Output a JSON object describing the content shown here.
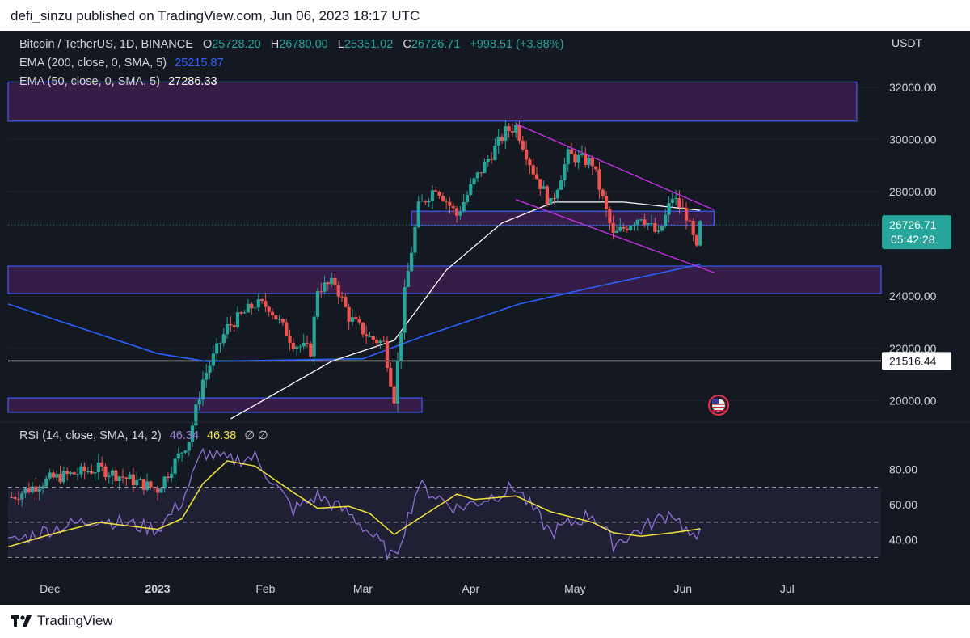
{
  "header": {
    "published": "defi_sinzu published on TradingView.com, Jun 06, 2023 18:17 UTC"
  },
  "legend": {
    "symbol": "Bitcoin / TetherUS, 1D, BINANCE",
    "o_label": "O",
    "o_value": "25728.20",
    "h_label": "H",
    "h_value": "26780.00",
    "l_label": "L",
    "l_value": "25351.02",
    "c_label": "C",
    "c_value": "26726.71",
    "change": "+998.51 (+3.88%)",
    "ema200_label": "EMA (200, close, 0, SMA, 5)",
    "ema200_value": "25215.87",
    "ema50_label": "EMA (50, close, 0, SMA, 5)",
    "ema50_value": "27286.33",
    "rsi_label": "RSI (14, close, SMA, 14, 2)",
    "rsi_value": "46.34",
    "rsi_ma_value": "46.38",
    "rsi_extra": "∅  ∅"
  },
  "price_axis": {
    "currency": "USDT",
    "ticks": [
      "32000.00",
      "30000.00",
      "28000.00",
      "24000.00",
      "22000.00",
      "20000.00"
    ],
    "last_price": "26726.71",
    "countdown": "05:42:28",
    "hline_label": "21516.44"
  },
  "rsi_axis": {
    "ticks": [
      "80.00",
      "60.00",
      "40.00"
    ]
  },
  "time_axis": {
    "ticks": [
      "Dec",
      "2023",
      "Feb",
      "Mar",
      "Apr",
      "May",
      "Jun",
      "Jul"
    ]
  },
  "footer": {
    "brand": "TradingView"
  },
  "colors": {
    "bg": "#141820",
    "up": "#26a69a",
    "down": "#ef5350",
    "ema200": "#2962ff",
    "ema50": "#ffffff",
    "zone_fill": "#3b1f4f",
    "zone_border": "#3d5afe",
    "channel": "#c030e0",
    "rsi": "#8f6fd8",
    "rsi_ma": "#f5e33b"
  },
  "chart_data": {
    "type": "candlestick",
    "symbol": "BTCUSDT",
    "interval": "1D",
    "ylim": [
      19300,
      32800
    ],
    "date_range": [
      "2022-11-19",
      "2023-07-28"
    ],
    "ohlc_summary": [
      {
        "date": "2022-11-20",
        "close": 16300
      },
      {
        "date": "2022-12-01",
        "close": 17000
      },
      {
        "date": "2022-12-15",
        "close": 17400
      },
      {
        "date": "2023-01-01",
        "close": 16600
      },
      {
        "date": "2023-01-10",
        "close": 18500
      },
      {
        "date": "2023-01-14",
        "close": 20800
      },
      {
        "date": "2023-01-21",
        "close": 22800
      },
      {
        "date": "2023-01-29",
        "close": 23700
      },
      {
        "date": "2023-02-02",
        "close": 23600
      },
      {
        "date": "2023-02-09",
        "close": 22200
      },
      {
        "date": "2023-02-14",
        "close": 21900
      },
      {
        "date": "2023-02-16",
        "close": 24300
      },
      {
        "date": "2023-02-21",
        "close": 24500
      },
      {
        "date": "2023-02-25",
        "close": 23200
      },
      {
        "date": "2023-03-03",
        "close": 22400
      },
      {
        "date": "2023-03-07",
        "close": 22200
      },
      {
        "date": "2023-03-10",
        "close": 20100
      },
      {
        "date": "2023-03-13",
        "close": 24100
      },
      {
        "date": "2023-03-17",
        "close": 27400
      },
      {
        "date": "2023-03-22",
        "close": 28200
      },
      {
        "date": "2023-03-28",
        "close": 27100
      },
      {
        "date": "2023-04-02",
        "close": 28400
      },
      {
        "date": "2023-04-11",
        "close": 30300
      },
      {
        "date": "2023-04-14",
        "close": 30500
      },
      {
        "date": "2023-04-19",
        "close": 28800
      },
      {
        "date": "2023-04-24",
        "close": 27500
      },
      {
        "date": "2023-04-29",
        "close": 29400
      },
      {
        "date": "2023-05-06",
        "close": 29100
      },
      {
        "date": "2023-05-12",
        "close": 26300
      },
      {
        "date": "2023-05-20",
        "close": 27100
      },
      {
        "date": "2023-05-25",
        "close": 26300
      },
      {
        "date": "2023-05-29",
        "close": 27800
      },
      {
        "date": "2023-06-02",
        "close": 27100
      },
      {
        "date": "2023-06-05",
        "close": 25730
      },
      {
        "date": "2023-06-06",
        "close": 26726.71
      }
    ],
    "ema200_points": [
      {
        "date": "2022-11-19",
        "value": 23700
      },
      {
        "date": "2023-01-01",
        "value": 21800
      },
      {
        "date": "2023-01-15",
        "value": 21500
      },
      {
        "date": "2023-03-01",
        "value": 21600
      },
      {
        "date": "2023-03-17",
        "value": 22400
      },
      {
        "date": "2023-04-15",
        "value": 23700
      },
      {
        "date": "2023-05-05",
        "value": 24300
      },
      {
        "date": "2023-06-06",
        "value": 25215.87
      }
    ],
    "ema50_points": [
      {
        "date": "2023-01-22",
        "value": 19300
      },
      {
        "date": "2023-02-20",
        "value": 21500
      },
      {
        "date": "2023-03-10",
        "value": 22300
      },
      {
        "date": "2023-03-25",
        "value": 25000
      },
      {
        "date": "2023-04-10",
        "value": 26800
      },
      {
        "date": "2023-04-25",
        "value": 27600
      },
      {
        "date": "2023-05-15",
        "value": 27600
      },
      {
        "date": "2023-06-06",
        "value": 27286.33
      }
    ],
    "zones": [
      {
        "from": 30700,
        "to": 32200,
        "start": "2022-11-19",
        "end": "2023-07-21"
      },
      {
        "from": 26700,
        "to": 27250,
        "start": "2023-03-15",
        "end": "2023-06-10"
      },
      {
        "from": 24100,
        "to": 25150,
        "start": "2022-11-19",
        "end": "2023-07-28"
      },
      {
        "from": 19550,
        "to": 20100,
        "start": "2022-11-19",
        "end": "2023-03-18"
      }
    ],
    "channel": [
      {
        "from": {
          "date": "2023-04-14",
          "value": 30600
        },
        "to": {
          "date": "2023-06-10",
          "value": 27300
        }
      },
      {
        "from": {
          "date": "2023-04-14",
          "value": 27700
        },
        "to": {
          "date": "2023-06-10",
          "value": 24900
        }
      }
    ],
    "hline": 21516.44,
    "rsi": {
      "ylim": [
        26,
        96
      ],
      "levels": [
        70,
        50,
        30
      ],
      "values": [
        {
          "date": "2022-11-19",
          "rsi": 38,
          "ma": 36
        },
        {
          "date": "2022-12-01",
          "rsi": 46,
          "ma": 43
        },
        {
          "date": "2022-12-15",
          "rsi": 52,
          "ma": 50
        },
        {
          "date": "2023-01-01",
          "rsi": 46,
          "ma": 46
        },
        {
          "date": "2023-01-08",
          "rsi": 62,
          "ma": 52
        },
        {
          "date": "2023-01-14",
          "rsi": 90,
          "ma": 72
        },
        {
          "date": "2023-01-21",
          "rsi": 85,
          "ma": 85
        },
        {
          "date": "2023-01-29",
          "rsi": 87,
          "ma": 82
        },
        {
          "date": "2023-02-09",
          "rsi": 57,
          "ma": 67
        },
        {
          "date": "2023-02-16",
          "rsi": 65,
          "ma": 58
        },
        {
          "date": "2023-02-25",
          "rsi": 55,
          "ma": 59
        },
        {
          "date": "2023-03-03",
          "rsi": 44,
          "ma": 55
        },
        {
          "date": "2023-03-10",
          "rsi": 29,
          "ma": 43
        },
        {
          "date": "2023-03-17",
          "rsi": 71,
          "ma": 52
        },
        {
          "date": "2023-03-28",
          "rsi": 58,
          "ma": 66
        },
        {
          "date": "2023-04-02",
          "rsi": 61,
          "ma": 63
        },
        {
          "date": "2023-04-14",
          "rsi": 70,
          "ma": 65
        },
        {
          "date": "2023-04-24",
          "rsi": 44,
          "ma": 56
        },
        {
          "date": "2023-05-06",
          "rsi": 55,
          "ma": 50
        },
        {
          "date": "2023-05-12",
          "rsi": 38,
          "ma": 44
        },
        {
          "date": "2023-05-20",
          "rsi": 46,
          "ma": 42
        },
        {
          "date": "2023-05-29",
          "rsi": 56,
          "ma": 44
        },
        {
          "date": "2023-06-05",
          "rsi": 37,
          "ma": 46
        },
        {
          "date": "2023-06-06",
          "rsi": 46.34,
          "ma": 46.38
        }
      ]
    }
  }
}
